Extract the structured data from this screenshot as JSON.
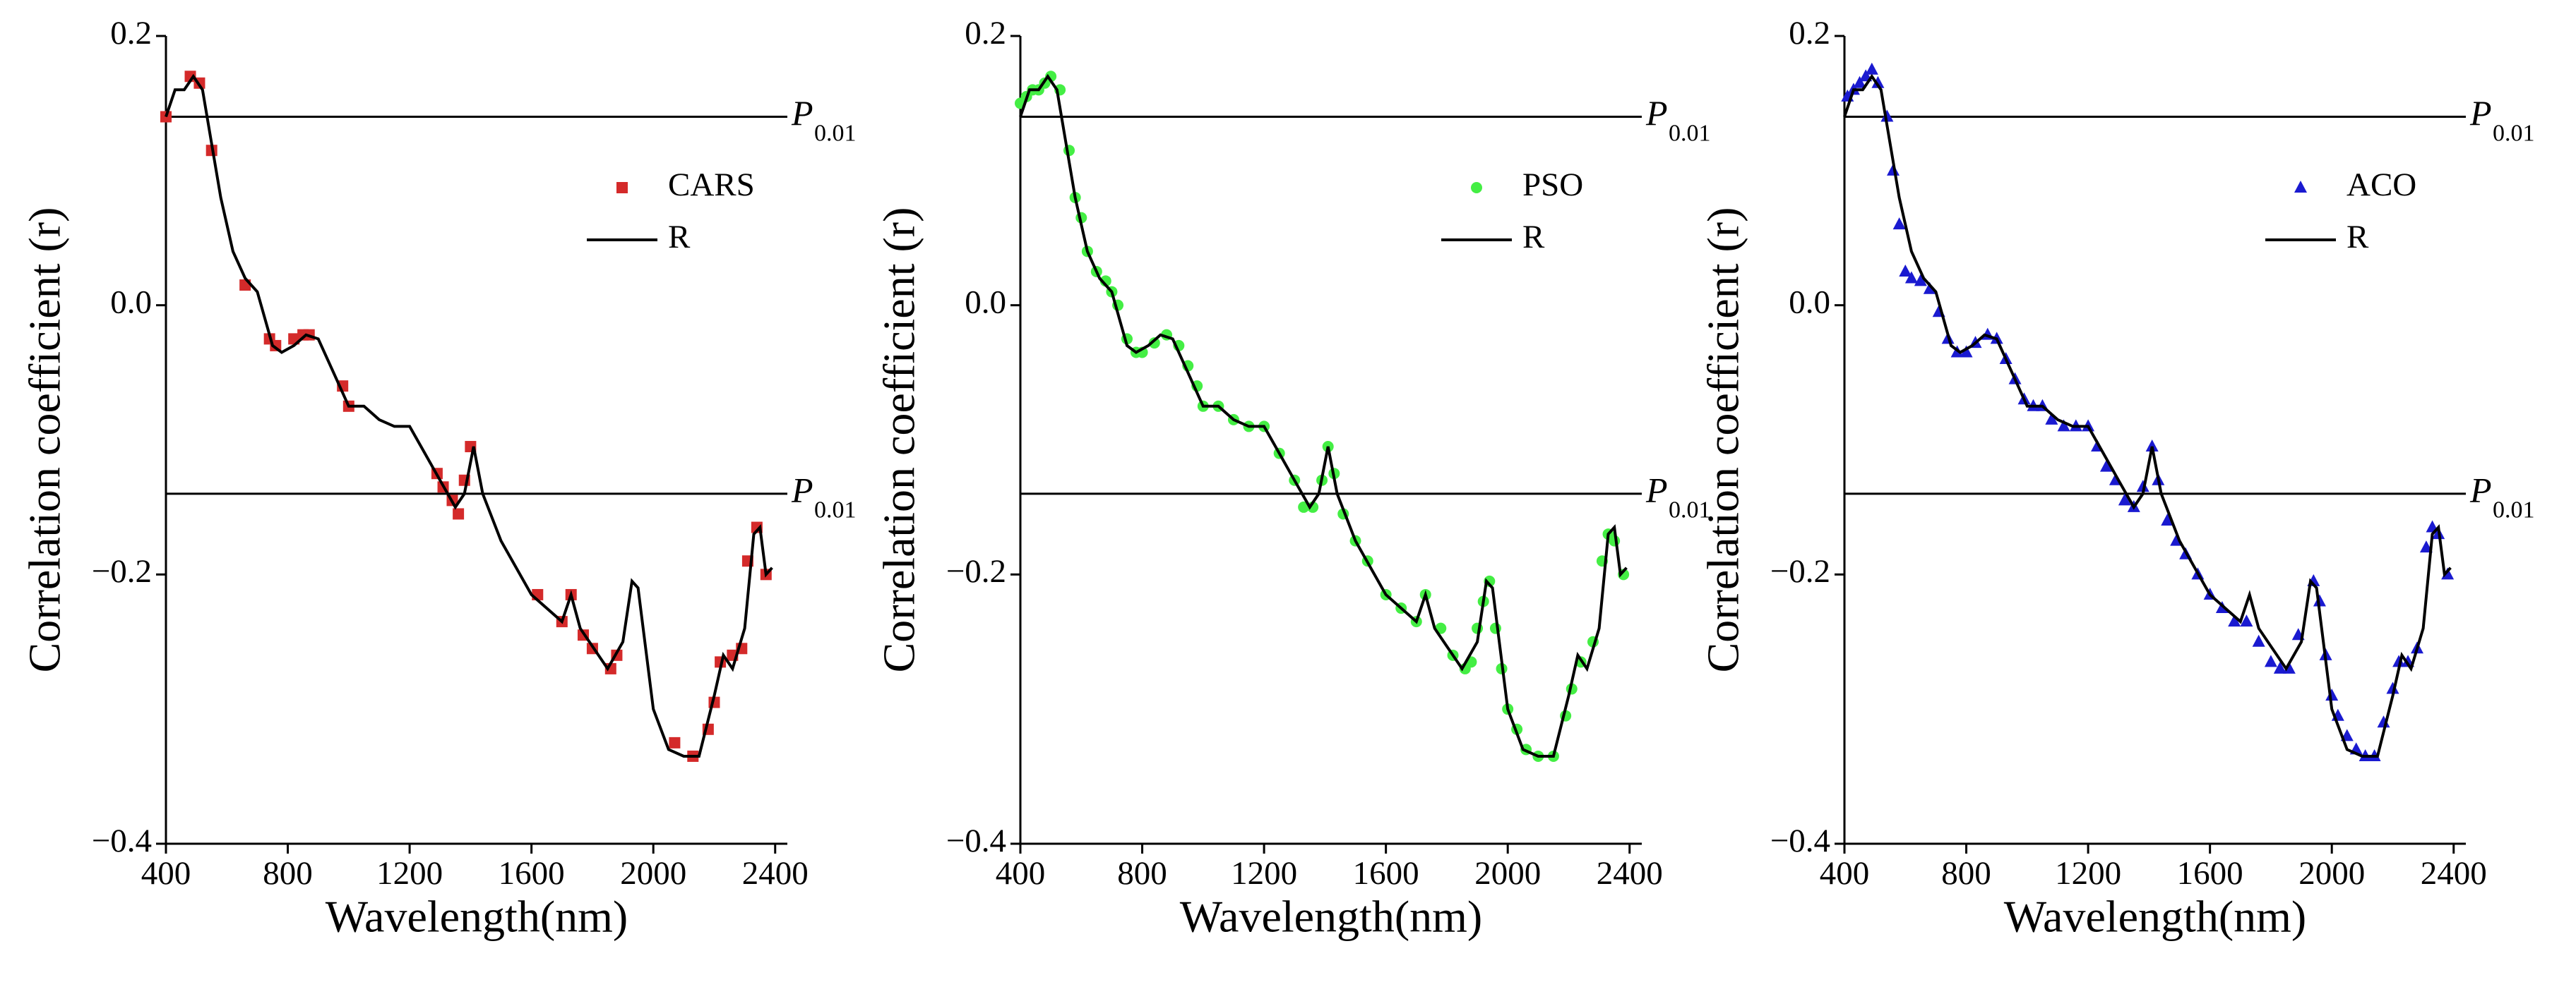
{
  "chart_data": [
    {
      "type": "line",
      "xlabel": "Wavelength(nm)",
      "ylabel": "Correlation coefficient (r)",
      "xlim": [
        400,
        2440
      ],
      "xticks": [
        400,
        800,
        1200,
        1600,
        2000,
        2400
      ],
      "ylim": [
        -0.4,
        0.2
      ],
      "yticks": [
        {
          "value": -0.4,
          "label": "−0.4"
        },
        {
          "value": -0.2,
          "label": "−0.2"
        },
        {
          "value": 0,
          "label": "0.0"
        },
        0.2
      ],
      "legend": "upper right",
      "thresholds": [
        {
          "value": 0.14,
          "label": "P",
          "subscript": "0.01"
        },
        {
          "value": -0.14,
          "label": "P",
          "subscript": "0.01"
        }
      ],
      "series": [
        {
          "name": "CARS",
          "color": "#d42a2a",
          "marker": "square",
          "x": [
            400,
            480,
            510,
            550,
            660,
            740,
            760,
            820,
            850,
            870,
            980,
            1000,
            1290,
            1310,
            1340,
            1360,
            1380,
            1400,
            1620,
            1700,
            1730,
            1770,
            1800,
            1860,
            1880,
            2070,
            2130,
            2180,
            2200,
            2220,
            2260,
            2290,
            2310,
            2340,
            2370
          ],
          "values": [
            0.14,
            0.17,
            0.165,
            0.115,
            0.015,
            -0.025,
            -0.03,
            -0.025,
            -0.022,
            -0.022,
            -0.06,
            -0.075,
            -0.125,
            -0.135,
            -0.145,
            -0.155,
            -0.13,
            -0.105,
            -0.215,
            -0.235,
            -0.215,
            -0.245,
            -0.255,
            -0.27,
            -0.26,
            -0.325,
            -0.335,
            -0.315,
            -0.295,
            -0.265,
            -0.26,
            -0.255,
            -0.19,
            -0.165,
            -0.2
          ]
        },
        {
          "name": "R",
          "color": "#000000",
          "x": [
            400,
            430,
            460,
            490,
            520,
            550,
            580,
            620,
            660,
            700,
            750,
            780,
            820,
            860,
            900,
            950,
            1000,
            1050,
            1100,
            1150,
            1200,
            1250,
            1300,
            1350,
            1380,
            1410,
            1440,
            1500,
            1600,
            1700,
            1730,
            1760,
            1850,
            1900,
            1930,
            1950,
            2000,
            2050,
            2100,
            2150,
            2200,
            2230,
            2260,
            2300,
            2330,
            2350,
            2370,
            2390
          ],
          "values": [
            0.14,
            0.16,
            0.16,
            0.17,
            0.16,
            0.12,
            0.08,
            0.04,
            0.02,
            0.01,
            -0.03,
            -0.035,
            -0.03,
            -0.022,
            -0.025,
            -0.05,
            -0.075,
            -0.075,
            -0.085,
            -0.09,
            -0.09,
            -0.11,
            -0.13,
            -0.15,
            -0.14,
            -0.105,
            -0.14,
            -0.175,
            -0.215,
            -0.235,
            -0.215,
            -0.24,
            -0.27,
            -0.25,
            -0.205,
            -0.21,
            -0.3,
            -0.33,
            -0.335,
            -0.335,
            -0.29,
            -0.26,
            -0.27,
            -0.24,
            -0.17,
            -0.165,
            -0.2,
            -0.195
          ]
        }
      ]
    },
    {
      "type": "line",
      "xlabel": "Wavelength(nm)",
      "ylabel": "Correlation coefficient (r)",
      "xlim": [
        400,
        2440
      ],
      "xticks": [
        400,
        800,
        1200,
        1600,
        2000,
        2400
      ],
      "ylim": [
        -0.4,
        0.2
      ],
      "yticks": [
        {
          "value": -0.4,
          "label": "−0.4"
        },
        {
          "value": -0.2,
          "label": "−0.2"
        },
        {
          "value": 0,
          "label": "0.0"
        },
        0.2
      ],
      "legend": "upper right",
      "thresholds": [
        {
          "value": 0.14,
          "label": "P",
          "subscript": "0.01"
        },
        {
          "value": -0.14,
          "label": "P",
          "subscript": "0.01"
        }
      ],
      "series": [
        {
          "name": "PSO",
          "color": "#44ee44",
          "marker": "circle",
          "x": [
            400,
            420,
            440,
            460,
            480,
            500,
            530,
            560,
            580,
            600,
            620,
            650,
            680,
            700,
            720,
            750,
            780,
            800,
            840,
            880,
            920,
            950,
            980,
            1000,
            1050,
            1100,
            1150,
            1200,
            1250,
            1300,
            1330,
            1360,
            1390,
            1410,
            1430,
            1460,
            1500,
            1540,
            1600,
            1650,
            1700,
            1730,
            1780,
            1820,
            1860,
            1880,
            1900,
            1920,
            1940,
            1960,
            1980,
            2000,
            2030,
            2060,
            2100,
            2150,
            2190,
            2210,
            2240,
            2280,
            2310,
            2330,
            2350,
            2380
          ],
          "values": [
            0.15,
            0.155,
            0.16,
            0.16,
            0.165,
            0.17,
            0.16,
            0.115,
            0.08,
            0.065,
            0.04,
            0.025,
            0.018,
            0.01,
            0.0,
            -0.025,
            -0.035,
            -0.035,
            -0.028,
            -0.022,
            -0.03,
            -0.045,
            -0.06,
            -0.075,
            -0.075,
            -0.085,
            -0.09,
            -0.09,
            -0.11,
            -0.13,
            -0.15,
            -0.15,
            -0.13,
            -0.105,
            -0.125,
            -0.155,
            -0.175,
            -0.19,
            -0.215,
            -0.225,
            -0.235,
            -0.215,
            -0.24,
            -0.26,
            -0.27,
            -0.265,
            -0.24,
            -0.22,
            -0.205,
            -0.24,
            -0.27,
            -0.3,
            -0.315,
            -0.33,
            -0.335,
            -0.335,
            -0.305,
            -0.285,
            -0.265,
            -0.25,
            -0.19,
            -0.17,
            -0.175,
            -0.2
          ]
        },
        {
          "name": "R",
          "color": "#000000",
          "x": [
            400,
            430,
            460,
            490,
            520,
            550,
            580,
            620,
            660,
            700,
            750,
            780,
            820,
            860,
            900,
            950,
            1000,
            1050,
            1100,
            1150,
            1200,
            1250,
            1300,
            1350,
            1380,
            1410,
            1440,
            1500,
            1600,
            1700,
            1730,
            1760,
            1850,
            1900,
            1930,
            1950,
            2000,
            2050,
            2100,
            2150,
            2200,
            2230,
            2260,
            2300,
            2330,
            2350,
            2370,
            2390
          ],
          "values": [
            0.14,
            0.16,
            0.16,
            0.17,
            0.16,
            0.12,
            0.08,
            0.04,
            0.02,
            0.01,
            -0.03,
            -0.035,
            -0.03,
            -0.022,
            -0.025,
            -0.05,
            -0.075,
            -0.075,
            -0.085,
            -0.09,
            -0.09,
            -0.11,
            -0.13,
            -0.15,
            -0.14,
            -0.105,
            -0.14,
            -0.175,
            -0.215,
            -0.235,
            -0.215,
            -0.24,
            -0.27,
            -0.25,
            -0.205,
            -0.21,
            -0.3,
            -0.33,
            -0.335,
            -0.335,
            -0.29,
            -0.26,
            -0.27,
            -0.24,
            -0.17,
            -0.165,
            -0.2,
            -0.195
          ]
        }
      ]
    },
    {
      "type": "line",
      "xlabel": "Wavelength(nm)",
      "ylabel": "Correlation coefficient (r)",
      "xlim": [
        400,
        2440
      ],
      "xticks": [
        400,
        800,
        1200,
        1600,
        2000,
        2400
      ],
      "ylim": [
        -0.4,
        0.2
      ],
      "yticks": [
        {
          "value": -0.4,
          "label": "−0.4"
        },
        {
          "value": -0.2,
          "label": "−0.2"
        },
        {
          "value": 0,
          "label": "0.0"
        },
        0.2
      ],
      "legend": "upper right",
      "thresholds": [
        {
          "value": 0.14,
          "label": "P",
          "subscript": "0.01"
        },
        {
          "value": -0.14,
          "label": "P",
          "subscript": "0.01"
        }
      ],
      "series": [
        {
          "name": "ACO",
          "color": "#1a1ad0",
          "marker": "triangle",
          "x": [
            410,
            430,
            450,
            470,
            490,
            510,
            540,
            560,
            580,
            600,
            620,
            650,
            680,
            710,
            740,
            770,
            800,
            830,
            870,
            900,
            930,
            960,
            990,
            1020,
            1050,
            1080,
            1120,
            1160,
            1200,
            1230,
            1260,
            1290,
            1320,
            1350,
            1380,
            1410,
            1430,
            1460,
            1490,
            1520,
            1560,
            1600,
            1640,
            1680,
            1720,
            1760,
            1800,
            1830,
            1860,
            1890,
            1940,
            1960,
            1980,
            2000,
            2020,
            2050,
            2080,
            2110,
            2140,
            2170,
            2200,
            2220,
            2250,
            2280,
            2310,
            2330,
            2350,
            2380
          ],
          "values": [
            0.155,
            0.16,
            0.165,
            0.17,
            0.175,
            0.165,
            0.14,
            0.1,
            0.06,
            0.025,
            0.02,
            0.018,
            0.012,
            -0.005,
            -0.025,
            -0.035,
            -0.035,
            -0.028,
            -0.022,
            -0.025,
            -0.04,
            -0.055,
            -0.07,
            -0.075,
            -0.075,
            -0.085,
            -0.09,
            -0.09,
            -0.09,
            -0.105,
            -0.12,
            -0.13,
            -0.145,
            -0.15,
            -0.135,
            -0.105,
            -0.13,
            -0.16,
            -0.175,
            -0.185,
            -0.2,
            -0.215,
            -0.225,
            -0.235,
            -0.235,
            -0.25,
            -0.265,
            -0.27,
            -0.27,
            -0.245,
            -0.205,
            -0.22,
            -0.26,
            -0.29,
            -0.305,
            -0.32,
            -0.33,
            -0.335,
            -0.335,
            -0.31,
            -0.285,
            -0.265,
            -0.265,
            -0.255,
            -0.18,
            -0.165,
            -0.17,
            -0.2
          ]
        },
        {
          "name": "R",
          "color": "#000000",
          "x": [
            400,
            430,
            460,
            490,
            520,
            550,
            580,
            620,
            660,
            700,
            750,
            780,
            820,
            860,
            900,
            950,
            1000,
            1050,
            1100,
            1150,
            1200,
            1250,
            1300,
            1350,
            1380,
            1410,
            1440,
            1500,
            1600,
            1700,
            1730,
            1760,
            1850,
            1900,
            1930,
            1950,
            2000,
            2050,
            2100,
            2150,
            2200,
            2230,
            2260,
            2300,
            2330,
            2350,
            2370,
            2390
          ],
          "values": [
            0.14,
            0.16,
            0.16,
            0.17,
            0.16,
            0.12,
            0.08,
            0.04,
            0.02,
            0.01,
            -0.03,
            -0.035,
            -0.03,
            -0.022,
            -0.025,
            -0.05,
            -0.075,
            -0.075,
            -0.085,
            -0.09,
            -0.09,
            -0.11,
            -0.13,
            -0.15,
            -0.14,
            -0.105,
            -0.14,
            -0.175,
            -0.215,
            -0.235,
            -0.215,
            -0.24,
            -0.27,
            -0.25,
            -0.205,
            -0.21,
            -0.3,
            -0.33,
            -0.335,
            -0.335,
            -0.29,
            -0.26,
            -0.27,
            -0.24,
            -0.17,
            -0.165,
            -0.2,
            -0.195
          ]
        }
      ]
    }
  ]
}
